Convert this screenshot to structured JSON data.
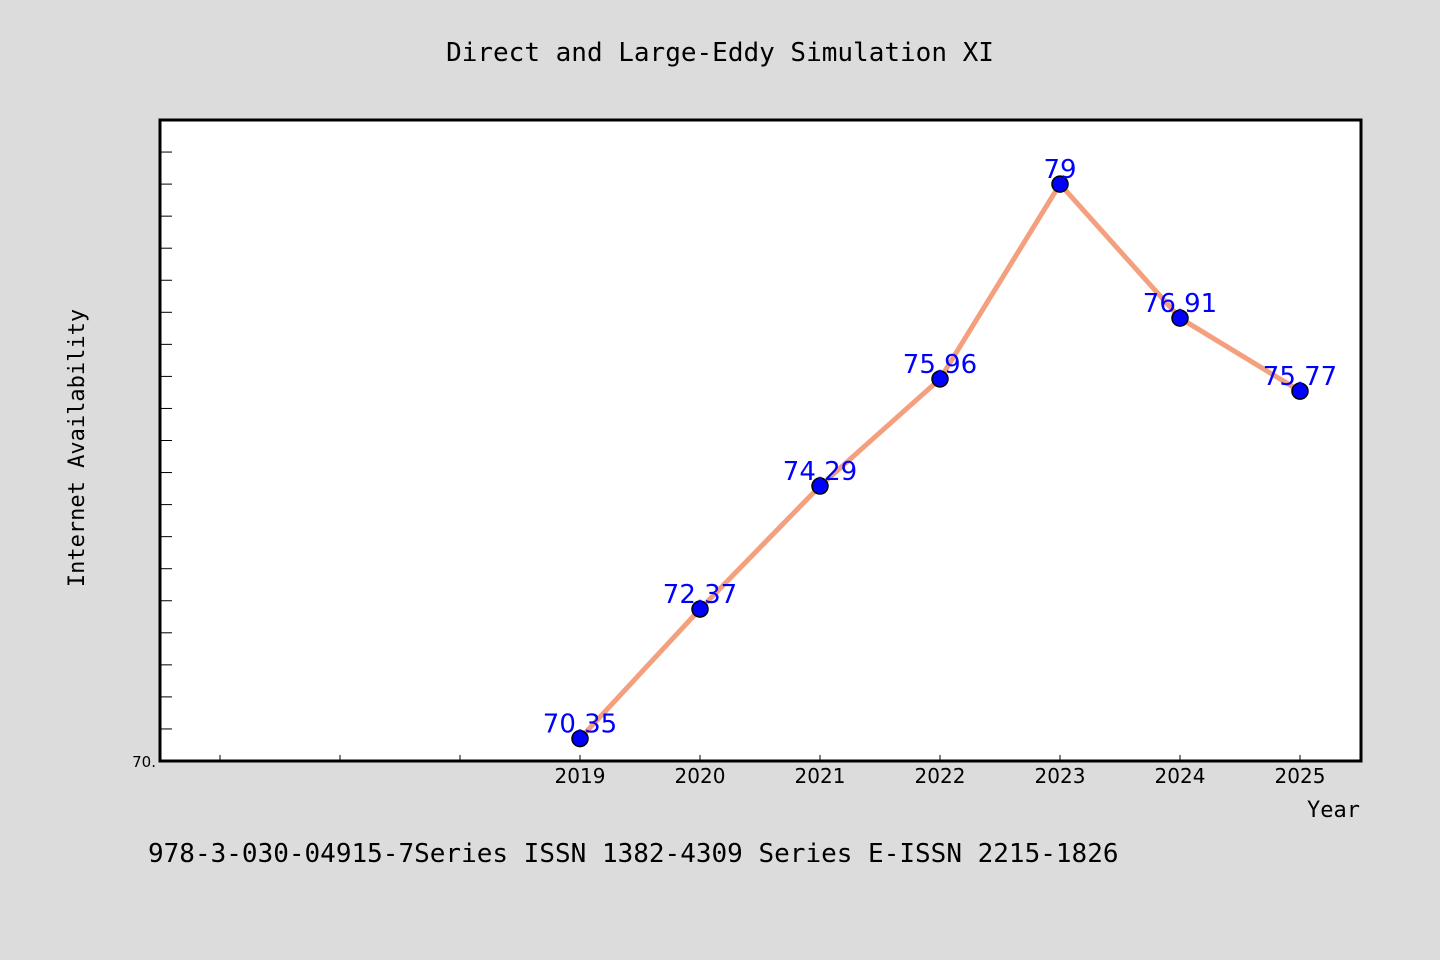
{
  "chart_data": {
    "type": "line",
    "title": "Direct and Large-Eddy Simulation XI",
    "xlabel": "Year",
    "ylabel": "Internet Availability",
    "y_tick_label": "70.",
    "categories": [
      "2019",
      "2020",
      "2021",
      "2022",
      "2023",
      "2024",
      "2025"
    ],
    "series": [
      {
        "values": [
          70.35,
          72.37,
          74.29,
          75.96,
          79,
          76.91,
          75.77
        ],
        "labels": [
          "70.35",
          "72.37",
          "74.29",
          "75.96",
          "79",
          "76.91",
          "75.77"
        ]
      }
    ],
    "ylim": [
      70,
      80
    ],
    "line_color": "#f4a07e",
    "marker_color": "#0000ff",
    "label_color": "#0000ff",
    "plot_background": "#ffffff",
    "page_background": "#dcdcdc",
    "footer": "978-3-030-04915-7Series ISSN 1382-4309 Series E-ISSN 2215-1826"
  }
}
